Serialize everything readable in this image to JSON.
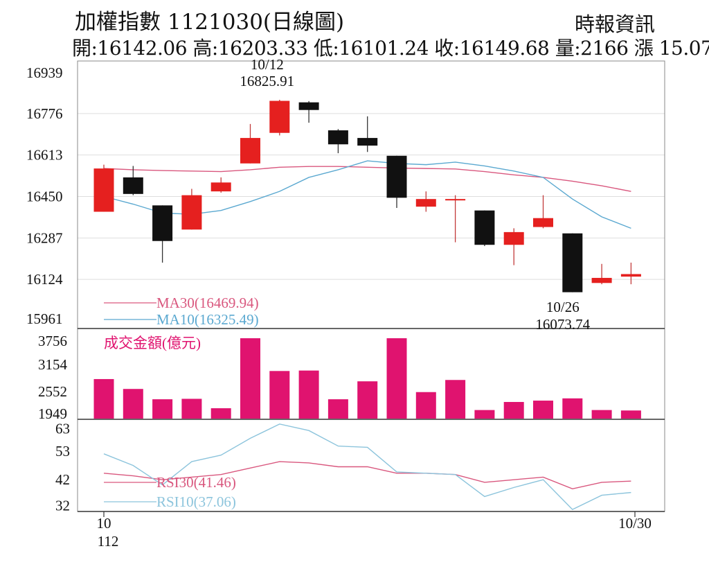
{
  "header": {
    "title": "加權指數 1121030(日線圖)",
    "source": "時報資訊",
    "ohlc_text": "開:16142.06 高:16203.33 低:16101.24 收:16149.68 量:2166 漲 15.07"
  },
  "colors": {
    "up": "#e5201f",
    "down": "#111111",
    "volume": "#e0136f",
    "ma30": "#d9577e",
    "ma10": "#5aa8d0",
    "rsi30": "#d9577e",
    "rsi10": "#8cc4dc",
    "grid": "#dddddd",
    "axis": "#888888"
  },
  "chart_data": [
    {
      "type": "candlestick",
      "panel": "price",
      "ylim": [
        15961,
        16939
      ],
      "y_ticks": [
        "16939",
        "16776",
        "16613",
        "16450",
        "16287",
        "16124",
        "15961"
      ],
      "x_start_label": "10",
      "x_start_sublabel": "112",
      "x_end_label": "10/30",
      "candles": [
        {
          "open": 16390,
          "close": 16560,
          "high": 16575,
          "low": 16390
        },
        {
          "open": 16525,
          "close": 16460,
          "high": 16570,
          "low": 16455
        },
        {
          "open": 16415,
          "close": 16275,
          "high": 16415,
          "low": 16190
        },
        {
          "open": 16320,
          "close": 16455,
          "high": 16480,
          "low": 16320
        },
        {
          "open": 16470,
          "close": 16505,
          "high": 16525,
          "low": 16465
        },
        {
          "open": 16580,
          "close": 16680,
          "high": 16735,
          "low": 16580
        },
        {
          "open": 16700,
          "close": 16825.91,
          "high": 16830,
          "low": 16690
        },
        {
          "open": 16820,
          "close": 16790,
          "high": 16825,
          "low": 16740
        },
        {
          "open": 16710,
          "close": 16655,
          "high": 16715,
          "low": 16620
        },
        {
          "open": 16680,
          "close": 16650,
          "high": 16765,
          "low": 16625
        },
        {
          "open": 16610,
          "close": 16445,
          "high": 16610,
          "low": 16405
        },
        {
          "open": 16410,
          "close": 16440,
          "high": 16470,
          "low": 16390
        },
        {
          "open": 16435,
          "close": 16440,
          "high": 16455,
          "low": 16270
        },
        {
          "open": 16395,
          "close": 16260,
          "high": 16395,
          "low": 16255
        },
        {
          "open": 16260,
          "close": 16310,
          "high": 16325,
          "low": 16180
        },
        {
          "open": 16330,
          "close": 16365,
          "high": 16455,
          "low": 16325
        },
        {
          "open": 16305,
          "close": 16073.74,
          "high": 16305,
          "low": 16073.74
        },
        {
          "open": 16110,
          "close": 16130,
          "high": 16185,
          "low": 16105
        },
        {
          "open": 16135,
          "close": 16145,
          "high": 16190,
          "low": 16105
        }
      ],
      "series": [
        {
          "name": "MA30(16469.94)",
          "values": [
            16560,
            16555,
            16552,
            16550,
            16548,
            16555,
            16565,
            16568,
            16568,
            16565,
            16562,
            16560,
            16558,
            16548,
            16535,
            16525,
            16510,
            16492,
            16470
          ]
        },
        {
          "name": "MA10(16325.49)",
          "values": [
            16450,
            16420,
            16385,
            16380,
            16395,
            16430,
            16470,
            16525,
            16555,
            16590,
            16580,
            16575,
            16585,
            16570,
            16550,
            16525,
            16440,
            16370,
            16325
          ]
        }
      ],
      "annotations": [
        {
          "index": 6,
          "date": "10/12",
          "value": "16825.91",
          "position": "top"
        },
        {
          "index": 16,
          "date": "10/26",
          "value": "16073.74",
          "position": "bottom"
        }
      ]
    },
    {
      "type": "bar",
      "panel": "volume",
      "title": "成交金額(億元)",
      "ylim": [
        1949,
        3756
      ],
      "y_ticks": [
        "3756",
        "3154",
        "2552",
        "1949"
      ],
      "values": [
        2830,
        2610,
        2380,
        2390,
        2180,
        3740,
        3010,
        3020,
        2380,
        2780,
        3740,
        2540,
        2810,
        2140,
        2320,
        2350,
        2400,
        2140,
        2130
      ]
    },
    {
      "type": "line",
      "panel": "rsi",
      "ylim": [
        30,
        64
      ],
      "y_ticks": [
        "63",
        "53",
        "42",
        "32"
      ],
      "series": [
        {
          "name": "RSI30(41.46)",
          "values": [
            44.5,
            43.5,
            42.0,
            43.0,
            44.0,
            46.5,
            49.0,
            48.5,
            47.0,
            47.0,
            44.5,
            44.5,
            44.0,
            41.0,
            42.0,
            43.0,
            38.5,
            41.0,
            41.46
          ]
        },
        {
          "name": "RSI10(37.06)",
          "values": [
            52.0,
            47.5,
            40.0,
            49.0,
            51.5,
            58.0,
            63.5,
            61.0,
            55.0,
            54.5,
            45.0,
            44.5,
            44.0,
            35.5,
            39.0,
            42.0,
            30.5,
            36.0,
            37.06
          ]
        }
      ]
    }
  ]
}
